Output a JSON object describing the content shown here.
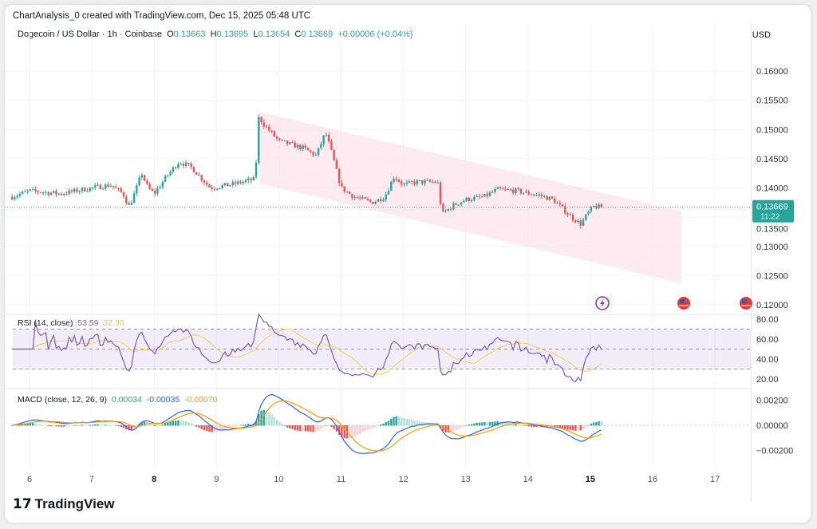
{
  "header": {
    "credit": "ChartAnalysis_0 created with TradingView.com, Dec 15, 2025 05:48 UTC",
    "symbol": "Dogecoin / US Dollar · 1h · Coinbase",
    "o_label": "O",
    "o": "0.13663",
    "h_label": "H",
    "h": "0.13695",
    "l_label": "L",
    "l": "0.13654",
    "c_label": "C",
    "c": "0.13669",
    "change": "+0.00006 (+0.04%)",
    "currency": "USD"
  },
  "price_label": {
    "price": "0.13669",
    "countdown": "11:22"
  },
  "rsi": {
    "label": "RSI (14, close)",
    "value": "53.59",
    "ma": "37.30",
    "ticks": [
      "80.00",
      "60.00",
      "40.00",
      "20.00"
    ]
  },
  "macd": {
    "label": "MACD (close, 12, 26, 9)",
    "hist": "0.00034",
    "macd": "-0.00035",
    "signal": "-0.00070",
    "ticks": [
      "0.00200",
      "0.00000",
      "−0.00200"
    ]
  },
  "brand": "TradingView",
  "colors": {
    "up": "#26a69a",
    "down": "#ef5350",
    "rsi": "#7e57c2",
    "rsi_ma": "#f5d46a",
    "macd": "#2962ff",
    "signal": "#ff9800",
    "channel": "#fce4ec"
  },
  "chart_data": {
    "type": "candlestick",
    "title": "Dogecoin / US Dollar · 1h · Coinbase",
    "x_ticks": [
      "6",
      "7",
      "8",
      "9",
      "10",
      "11",
      "12",
      "13",
      "14",
      "15",
      "16",
      "17"
    ],
    "y_ticks": [
      "0.16000",
      "0.15500",
      "0.15000",
      "0.14500",
      "0.14000",
      "0.13500",
      "0.13000",
      "0.12500",
      "0.12000"
    ],
    "ylim": [
      0.12,
      0.16
    ],
    "close_path_day_price": [
      [
        5.72,
        0.1385
      ],
      [
        6.0,
        0.1395
      ],
      [
        6.5,
        0.139
      ],
      [
        7.0,
        0.14
      ],
      [
        7.3,
        0.1405
      ],
      [
        7.5,
        0.139
      ],
      [
        7.6,
        0.1368
      ],
      [
        7.7,
        0.1395
      ],
      [
        7.8,
        0.1425
      ],
      [
        7.9,
        0.14
      ],
      [
        8.0,
        0.139
      ],
      [
        8.2,
        0.142
      ],
      [
        8.4,
        0.1445
      ],
      [
        8.6,
        0.1435
      ],
      [
        8.9,
        0.14
      ],
      [
        9.2,
        0.1405
      ],
      [
        9.62,
        0.1415
      ],
      [
        9.68,
        0.1522
      ],
      [
        9.75,
        0.151
      ],
      [
        10.0,
        0.148
      ],
      [
        10.4,
        0.1468
      ],
      [
        10.6,
        0.1455
      ],
      [
        10.75,
        0.1495
      ],
      [
        10.85,
        0.146
      ],
      [
        11.0,
        0.14
      ],
      [
        11.2,
        0.1385
      ],
      [
        11.5,
        0.1375
      ],
      [
        11.7,
        0.1385
      ],
      [
        11.85,
        0.142
      ],
      [
        12.0,
        0.1405
      ],
      [
        12.2,
        0.141
      ],
      [
        12.55,
        0.141
      ],
      [
        12.62,
        0.1355
      ],
      [
        12.8,
        0.137
      ],
      [
        13.0,
        0.138
      ],
      [
        13.3,
        0.1385
      ],
      [
        13.5,
        0.1397
      ],
      [
        13.8,
        0.1395
      ],
      [
        14.2,
        0.1387
      ],
      [
        14.4,
        0.138
      ],
      [
        14.7,
        0.135
      ],
      [
        14.85,
        0.1338
      ],
      [
        14.95,
        0.1355
      ],
      [
        15.05,
        0.1368
      ],
      [
        15.2,
        0.13669
      ]
    ],
    "channel": {
      "upper": [
        [
          9.69,
          0.153
        ],
        [
          16.46,
          0.136
        ]
      ],
      "lower": [
        [
          9.69,
          0.1408
        ],
        [
          16.46,
          0.1237
        ]
      ]
    },
    "last_price": 0.13669
  }
}
